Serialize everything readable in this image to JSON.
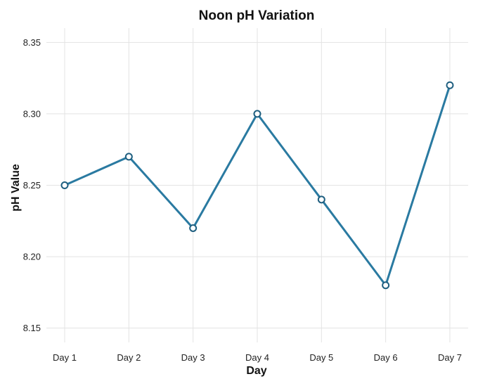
{
  "chart_data": {
    "type": "line",
    "title": "Noon pH Variation",
    "xlabel": "Day",
    "ylabel": "pH Value",
    "categories": [
      "Day 1",
      "Day 2",
      "Day 3",
      "Day 4",
      "Day 5",
      "Day 6",
      "Day 7"
    ],
    "series": [
      {
        "values": [
          8.25,
          8.27,
          8.22,
          8.3,
          8.24,
          8.18,
          8.32
        ]
      }
    ],
    "ylim": [
      8.14,
      8.36
    ],
    "yticks": [
      "8.15",
      "8.20",
      "8.25",
      "8.30",
      "8.35"
    ],
    "grid": true,
    "legend": "none",
    "colors": {
      "line": "#2a7aa1",
      "point_stroke": "#1f5f80",
      "point_fill": "#ffffff"
    }
  }
}
